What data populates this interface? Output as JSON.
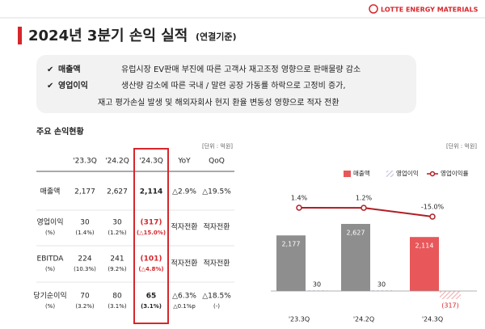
{
  "header": {
    "title": "2024년 3분기 손익 실적",
    "subtitle": "(연결기준)",
    "logo": "LOTTE ENERGY MATERIALS"
  },
  "bullets": [
    {
      "label": "매출액",
      "lines": [
        "유럽시장 EV판매 부진에 따른 고객사 재고조정 영향으로 판매물량 감소"
      ]
    },
    {
      "label": "영업이익",
      "lines": [
        "생산량 감소에 따른 국내 / 말련 공장 가동률 하락으로 고정비 증가,",
        "재고 평가손실 발생 및 해외자회사 현지 환율 변동성 영향으로 적자 전환"
      ]
    }
  ],
  "table": {
    "title": "주요 손익현황",
    "unit": "[단위 : 억원]",
    "columns": [
      "'23.3Q",
      "'24.2Q",
      "'24.3Q",
      "YoY",
      "QoQ"
    ],
    "rows": [
      {
        "label": [
          "매출액"
        ],
        "cells": [
          [
            "2,177"
          ],
          [
            "2,627"
          ],
          [
            "2,114"
          ],
          [
            "△2.9%"
          ],
          [
            "△19.5%"
          ]
        ]
      },
      {
        "label": [
          "영업이익",
          "(%)"
        ],
        "cells": [
          [
            "30",
            "(1.4%)"
          ],
          [
            "30",
            "(1.2%)"
          ],
          [
            "(317)",
            "(△15.0%)"
          ],
          [
            "적자전환"
          ],
          [
            "적자전환"
          ]
        ]
      },
      {
        "label": [
          "EBITDA",
          "(%)"
        ],
        "cells": [
          [
            "224",
            "(10.3%)"
          ],
          [
            "241",
            "(9.2%)"
          ],
          [
            "(101)",
            "(△4.8%)"
          ],
          [
            "적자전환"
          ],
          [
            "적자전환"
          ]
        ]
      },
      {
        "label": [
          "당기순이익",
          "(%)"
        ],
        "cells": [
          [
            "70",
            "(3.2%)"
          ],
          [
            "80",
            "(3.1%)"
          ],
          [
            "65",
            "(3.1%)"
          ],
          [
            "△6.3%",
            "△0.1%p"
          ],
          [
            "△18.5%",
            "(-)"
          ]
        ]
      }
    ]
  },
  "chart_data": {
    "type": "bar",
    "unit": "[단위 : 억원]",
    "categories": [
      "'23.3Q",
      "'24.2Q",
      "'24.3Q"
    ],
    "series": [
      {
        "name": "매출액",
        "color": "#e8575a",
        "colors": [
          "#8e8e8e",
          "#8e8e8e",
          "#e8575a"
        ],
        "values": [
          2177,
          2627,
          2114
        ],
        "value_labels": [
          "2,177",
          "2,627",
          "2,114"
        ]
      },
      {
        "name": "영업이익",
        "color": "#c9c3e0",
        "colors": [
          "#c9c3e0",
          "#c9c3e0",
          "#f2b5b6"
        ],
        "values": [
          30,
          30,
          -317
        ],
        "value_labels": [
          "30",
          "30",
          "(317)"
        ]
      },
      {
        "name": "영업이익률",
        "type": "line",
        "color": "#b01e23",
        "values": [
          1.4,
          1.2,
          -15.0
        ],
        "value_labels": [
          "1.4%",
          "1.2%",
          "-15.0%"
        ]
      }
    ]
  }
}
